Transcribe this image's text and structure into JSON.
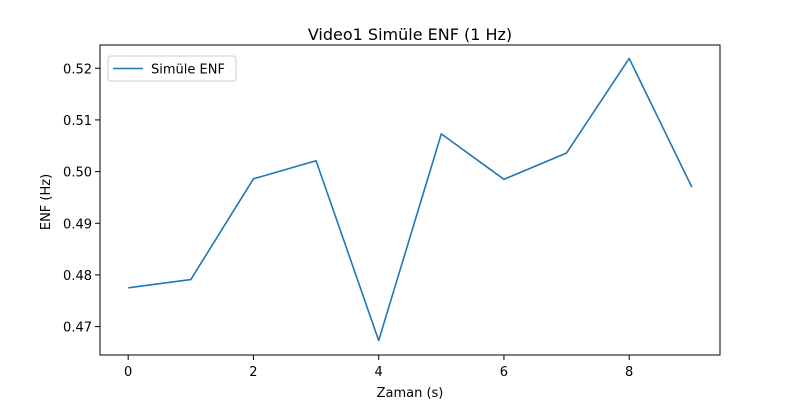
{
  "chart_data": {
    "type": "line",
    "title": "Video1 Simüle ENF (1 Hz)",
    "xlabel": "Zaman (s)",
    "ylabel": "ENF (Hz)",
    "xlim": [
      -0.45,
      9.45
    ],
    "ylim": [
      0.4645,
      0.5245
    ],
    "xticks": [
      0,
      2,
      4,
      6,
      8
    ],
    "xtick_labels": [
      "0",
      "2",
      "4",
      "6",
      "8"
    ],
    "yticks": [
      0.47,
      0.48,
      0.49,
      0.5,
      0.51,
      0.52
    ],
    "ytick_labels": [
      "0.47",
      "0.48",
      "0.49",
      "0.50",
      "0.51",
      "0.52"
    ],
    "grid": false,
    "legend_position": "upper-left",
    "series": [
      {
        "name": "Simüle ENF",
        "color": "#1f77b4",
        "x": [
          0,
          1,
          2,
          3,
          4,
          5,
          6,
          7,
          8,
          9
        ],
        "y": [
          0.4775,
          0.4791,
          0.4986,
          0.5021,
          0.4673,
          0.5073,
          0.4985,
          0.5036,
          0.5219,
          0.497
        ]
      }
    ]
  }
}
